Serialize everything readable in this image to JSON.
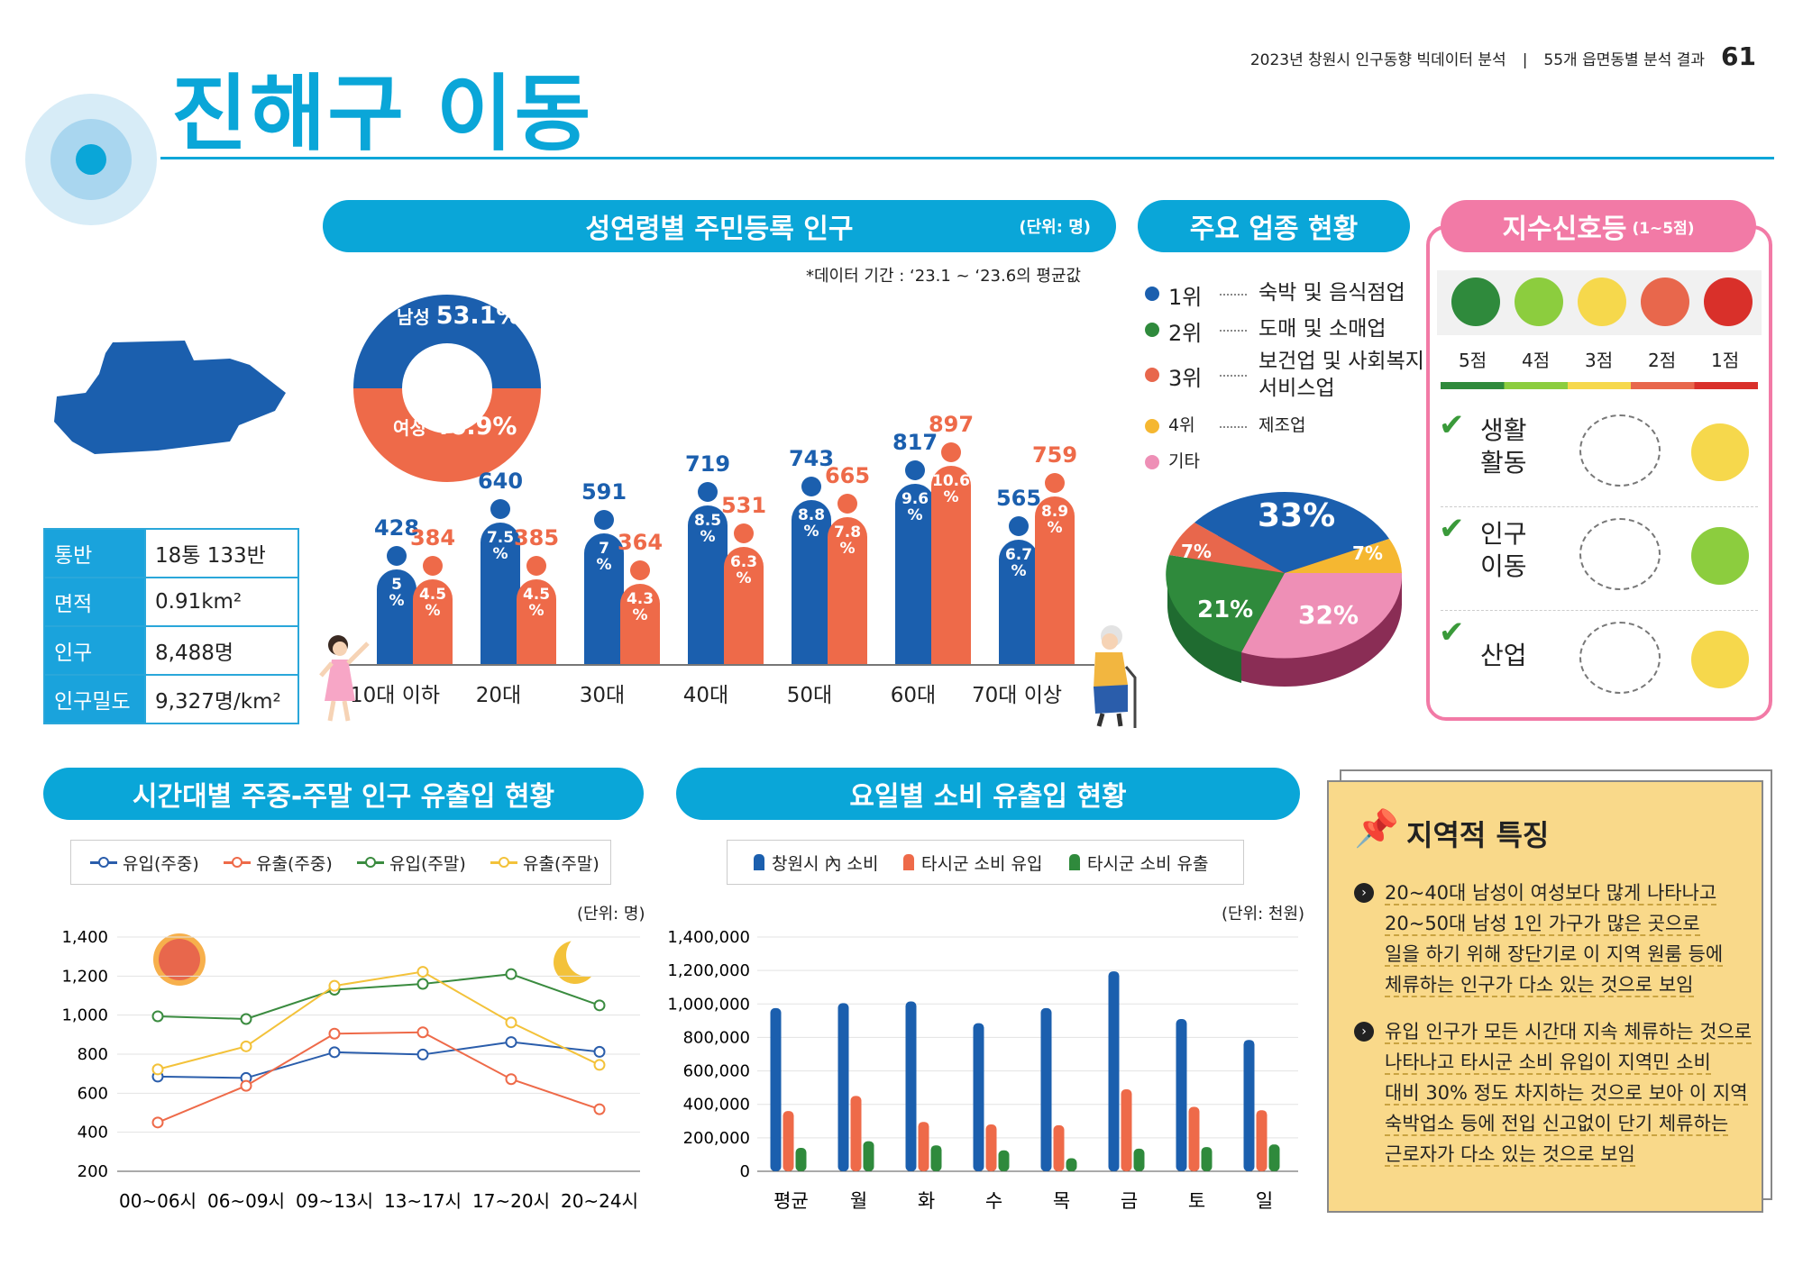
{
  "header": {
    "title": "진해구 이동",
    "report": "2023년 창원시 인구동향 빅데이터 분석",
    "sep": "|",
    "section": "55개 읍면동별 분석 결과",
    "page": "61"
  },
  "info": {
    "rows": [
      {
        "k": "통반",
        "v": "18통 133반"
      },
      {
        "k": "면적",
        "v": "0.91km²"
      },
      {
        "k": "인구",
        "v": "8,488명"
      },
      {
        "k": "인구밀도",
        "v": "9,327명/km²"
      }
    ]
  },
  "age_chart": {
    "title": "성연령별 주민등록 인구",
    "unit": "(단위: 명)",
    "note": "*데이터 기간 : ‘23.1 ~ ‘23.6의 평균값",
    "donut": {
      "male_label": "남성",
      "male_pct": "53.1%",
      "female_label": "여성",
      "female_pct": "46.9%"
    }
  },
  "industry": {
    "title": "주요 업종 현황",
    "items": [
      {
        "rank": "1위",
        "name": "숙박 및 음식점업",
        "color": "#1b5fae"
      },
      {
        "rank": "2위",
        "name": "도매 및 소매업",
        "color": "#2f8a3c"
      },
      {
        "rank": "3위",
        "name": "보건업 및 사회복지\n서비스업",
        "color": "#e8674c"
      },
      {
        "rank": "4위",
        "name": "제조업",
        "color": "#f5b731"
      },
      {
        "rank": "기타",
        "name": "",
        "color": "#ee8fb6"
      }
    ],
    "pie_labels": [
      "33%",
      "7%",
      "32%",
      "21%",
      "7%"
    ]
  },
  "signal": {
    "title": "지수신호등",
    "range": "(1~5점)",
    "scores": [
      "5점",
      "4점",
      "3점",
      "2점",
      "1점"
    ],
    "items": [
      {
        "label": "생활\n활동"
      },
      {
        "label": "인구\n이동"
      },
      {
        "label": "산업"
      }
    ]
  },
  "time_chart": {
    "title": "시간대별 주중-주말 인구 유출입 현황",
    "unit": "(단위: 명)",
    "legend": [
      "유입(주중)",
      "유출(주중)",
      "유입(주말)",
      "유출(주말)"
    ]
  },
  "day_chart": {
    "title": "요일별 소비 유출입 현황",
    "unit": "(단위: 천원)",
    "legend": [
      "창원시 內 소비",
      "타시군 소비 유입",
      "타시군 소비 유출"
    ]
  },
  "features": {
    "title": "지역적 특징",
    "p1": [
      "20~40대 남성이 여성보다 많게 나타나고",
      "20~50대 남성 1인 가구가 많은 곳으로",
      "일을 하기 위해 장단기로 이 지역 원룸 등에",
      "체류하는 인구가 다소 있는 것으로 보임"
    ],
    "p2": [
      "유입 인구가 모든 시간대 지속 체류하는 것으로",
      "나타나고 타시군 소비 유입이 지역민 소비",
      "대비 30% 정도 차지하는 것으로 보아 이 지역",
      "숙박업소 등에 전입 신고없이 단기 체류하는",
      "근로자가 다소 있는 것으로 보임"
    ]
  },
  "chart_data": [
    {
      "type": "bar",
      "title": "성연령별 주민등록 인구",
      "categories": [
        "10대 이하",
        "20대",
        "30대",
        "40대",
        "50대",
        "60대",
        "70대 이상"
      ],
      "series": [
        {
          "name": "남성",
          "values": [
            428,
            640,
            591,
            719,
            743,
            817,
            565
          ],
          "pct": [
            "5\n%",
            "7.5\n%",
            "7\n%",
            "8.5\n%",
            "8.8\n%",
            "9.6\n%",
            "6.7\n%"
          ],
          "color": "#1b5fae"
        },
        {
          "name": "여성",
          "values": [
            384,
            385,
            364,
            531,
            665,
            897,
            759
          ],
          "pct": [
            "4.5\n%",
            "4.5\n%",
            "4.3\n%",
            "6.3\n%",
            "7.8\n%",
            "10.6\n%",
            "8.9\n%"
          ],
          "color": "#ee6a49"
        }
      ]
    },
    {
      "type": "pie",
      "title": "주요 업종 현황",
      "categories": [
        "1위",
        "2위",
        "3위",
        "4위",
        "기타"
      ],
      "values": [
        33,
        21,
        7,
        7,
        32
      ]
    },
    {
      "type": "line",
      "title": "시간대별 주중-주말 인구 유출입 현황",
      "categories": [
        "00~06시",
        "06~09시",
        "09~13시",
        "13~17시",
        "17~20시",
        "20~24시"
      ],
      "ylim": [
        200,
        1400
      ],
      "yticks": [
        "1,400",
        "1,200",
        "1,000",
        "800",
        "600",
        "400",
        "200"
      ],
      "series": [
        {
          "name": "유입(주중)",
          "values": [
            685,
            678,
            810,
            798,
            862,
            812
          ],
          "color": "#2a5dab"
        },
        {
          "name": "유출(주중)",
          "values": [
            450,
            638,
            905,
            912,
            672,
            518
          ],
          "color": "#ee6a49"
        },
        {
          "name": "유입(주말)",
          "values": [
            994,
            980,
            1130,
            1160,
            1210,
            1050
          ],
          "color": "#3a8b3f"
        },
        {
          "name": "유출(주말)",
          "values": [
            722,
            840,
            1150,
            1222,
            962,
            745
          ],
          "color": "#f3c23a"
        }
      ]
    },
    {
      "type": "bar",
      "title": "요일별 소비 유출입 현황",
      "categories": [
        "평균",
        "월",
        "화",
        "수",
        "목",
        "금",
        "토",
        "일"
      ],
      "ylim": [
        0,
        1400000
      ],
      "yticks": [
        "1,400,000",
        "1,200,000",
        "1,000,000",
        "800,000",
        "600,000",
        "400,000",
        "200,000",
        "0"
      ],
      "series": [
        {
          "name": "창원시 內 소비",
          "values": [
            975000,
            1005000,
            1015000,
            885000,
            975000,
            1195000,
            910000,
            785000
          ],
          "color": "#1b5fae"
        },
        {
          "name": "타시군 소비 유입",
          "values": [
            360000,
            450000,
            295000,
            280000,
            275000,
            490000,
            385000,
            365000
          ],
          "color": "#ee6a49"
        },
        {
          "name": "타시군 소비 유출",
          "values": [
            140000,
            180000,
            155000,
            125000,
            78000,
            135000,
            145000,
            160000
          ],
          "color": "#2f8a3c"
        }
      ]
    }
  ]
}
